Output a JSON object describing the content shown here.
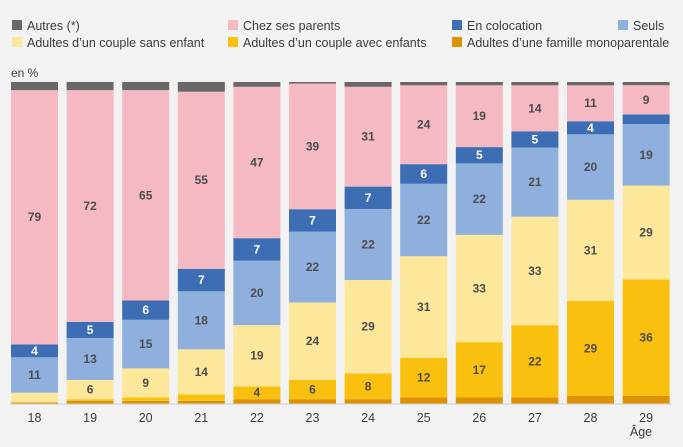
{
  "chart_data": {
    "type": "bar",
    "stacked": true,
    "unit_label": "en %",
    "xlabel": "Âge",
    "categories": [
      "18",
      "19",
      "20",
      "21",
      "22",
      "23",
      "24",
      "25",
      "26",
      "27",
      "28",
      "29"
    ],
    "ylim": [
      0,
      100
    ],
    "legend_position": "top",
    "series": [
      {
        "name": "Adultes d’une famille monoparentale",
        "color": "#dd9206",
        "values": [
          0.5,
          1,
          1,
          1,
          1.5,
          1.5,
          1.5,
          2,
          2,
          2,
          2.5,
          2.5
        ],
        "labels": [
          null,
          null,
          null,
          null,
          null,
          null,
          null,
          null,
          null,
          null,
          null,
          null
        ]
      },
      {
        "name": "Adultes d’un couple avec enfants",
        "color": "#fac010",
        "values": [
          0,
          0.5,
          1,
          2,
          4,
          6,
          8,
          12,
          17,
          22,
          29,
          36
        ],
        "labels": [
          null,
          null,
          null,
          null,
          "4",
          "6",
          "8",
          "12",
          "17",
          "22",
          "29",
          "36"
        ]
      },
      {
        "name": "Adultes d’un couple sans enfant",
        "color": "#fde79a",
        "values": [
          3,
          6,
          9,
          14,
          19,
          24,
          29,
          31,
          33,
          33,
          31,
          29
        ],
        "labels": [
          null,
          "6",
          "9",
          "14",
          "19",
          "24",
          "29",
          "31",
          "33",
          "33",
          "31",
          "29"
        ]
      },
      {
        "name": "Seuls",
        "color": "#8fb0dd",
        "values": [
          11,
          13,
          15,
          18,
          20,
          22,
          22,
          22,
          22,
          21,
          20,
          19
        ],
        "labels": [
          "11",
          "13",
          "15",
          "18",
          "20",
          "22",
          "22",
          "22",
          "22",
          "21",
          "20",
          "19"
        ]
      },
      {
        "name": "En colocation",
        "color": "#3d6eb4",
        "values": [
          4,
          5,
          6,
          7,
          7,
          7,
          7,
          6,
          5,
          5,
          4,
          3
        ],
        "labels": [
          "4",
          "5",
          "6",
          "7",
          "7",
          "7",
          "7",
          "6",
          "5",
          "5",
          "4",
          null
        ]
      },
      {
        "name": "Chez ses parents",
        "color": "#f4b9c2",
        "values": [
          79,
          72,
          65,
          55,
          47,
          39,
          31,
          24,
          19,
          14,
          11,
          9
        ],
        "labels": [
          "79",
          "72",
          "65",
          "55",
          "47",
          "39",
          "31",
          "24",
          "19",
          "14",
          "11",
          "9"
        ]
      },
      {
        "name": "Autres (*)",
        "color": "#686868",
        "values": [
          2.5,
          2.5,
          2.5,
          3,
          1.5,
          0.5,
          1.5,
          1,
          1,
          1,
          1,
          1
        ],
        "labels": [
          null,
          null,
          null,
          null,
          null,
          null,
          null,
          null,
          null,
          null,
          null,
          null
        ]
      }
    ],
    "legend_order": [
      "Autres (*)",
      "Chez ses parents",
      "En colocation",
      "Seuls",
      "Adultes d’un couple sans enfant",
      "Adultes d’un couple avec enfants",
      "Adultes d’une famille monoparentale"
    ],
    "light_text_series": [
      "En colocation"
    ]
  }
}
